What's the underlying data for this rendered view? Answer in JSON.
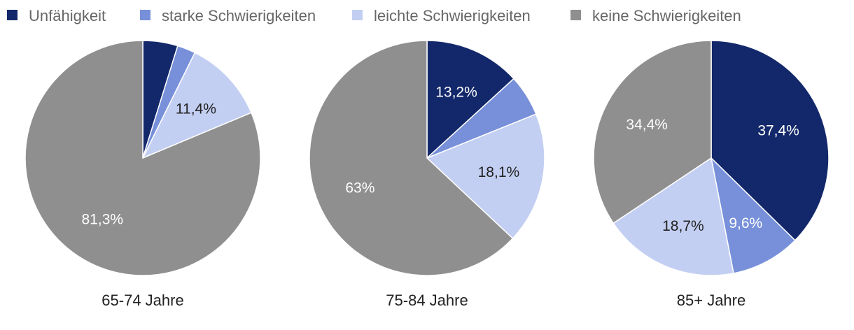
{
  "chart_data": {
    "type": "pie",
    "legend": {
      "position": "top-left",
      "entries": [
        {
          "label": "Unfähigkeit",
          "color": "#13286a"
        },
        {
          "label": "starke Schwierigkeiten",
          "color": "#7790d9"
        },
        {
          "label": "leichte Schwierigkeiten",
          "color": "#c3cff2"
        },
        {
          "label": "keine Schwierigkeiten",
          "color": "#8f8f8f"
        }
      ]
    },
    "pies": [
      {
        "title": "65-74 Jahre",
        "slices": [
          {
            "label": "Unfähigkeit",
            "value": 4.8,
            "display": ""
          },
          {
            "label": "starke Schwierigkeiten",
            "value": 2.5,
            "display": ""
          },
          {
            "label": "leichte Schwierigkeiten",
            "value": 11.4,
            "display": "11,4%"
          },
          {
            "label": "keine Schwierigkeiten",
            "value": 81.3,
            "display": "81,3%"
          }
        ]
      },
      {
        "title": "75-84 Jahre",
        "slices": [
          {
            "label": "Unfähigkeit",
            "value": 13.2,
            "display": "13,2%"
          },
          {
            "label": "starke Schwierigkeiten",
            "value": 5.7,
            "display": ""
          },
          {
            "label": "leichte Schwierigkeiten",
            "value": 18.1,
            "display": "18,1%"
          },
          {
            "label": "keine Schwierigkeiten",
            "value": 63.0,
            "display": "63%"
          }
        ]
      },
      {
        "title": "85+ Jahre",
        "slices": [
          {
            "label": "Unfähigkeit",
            "value": 37.4,
            "display": "37,4%"
          },
          {
            "label": "starke Schwierigkeiten",
            "value": 9.6,
            "display": "9,6%"
          },
          {
            "label": "leichte Schwierigkeiten",
            "value": 18.7,
            "display": "18,7%"
          },
          {
            "label": "keine Schwierigkeiten",
            "value": 34.4,
            "display": "34,4%"
          }
        ]
      }
    ]
  }
}
